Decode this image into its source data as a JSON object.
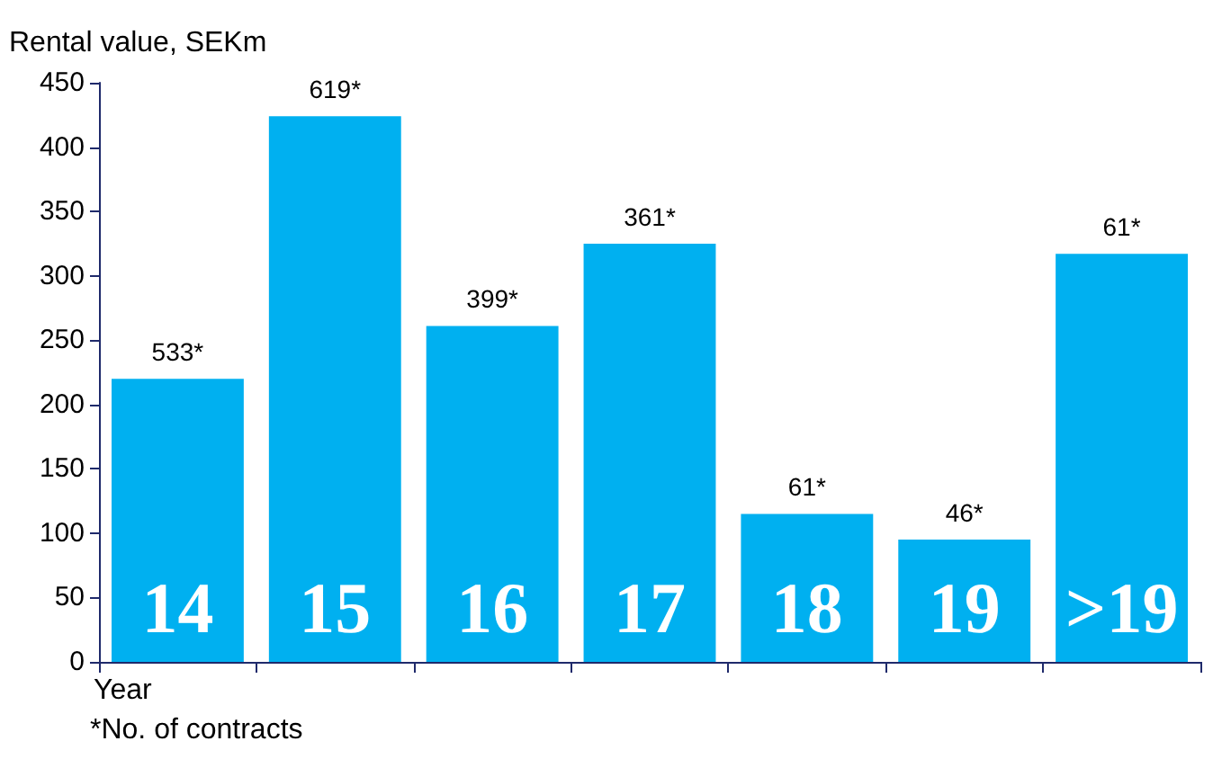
{
  "chart_data": {
    "type": "bar",
    "ylabel": "Rental value, SEKm",
    "xlabel": "Year",
    "categories": [
      "14",
      "15",
      "16",
      "17",
      "18",
      "19",
      ">19"
    ],
    "values": [
      220,
      424,
      261,
      325,
      115,
      95,
      317
    ],
    "color": "#00b0f0",
    "ylim": [
      0,
      450
    ],
    "yticks": [
      0,
      50,
      100,
      150,
      200,
      250,
      300,
      350,
      400,
      450
    ],
    "grid": false,
    "annotations": [
      {
        "text": "533*",
        "x": "14",
        "y": 220
      },
      {
        "text": "619*",
        "x": "15",
        "y": 424
      },
      {
        "text": "399*",
        "x": "16",
        "y": 261
      },
      {
        "text": "361*",
        "x": "17",
        "y": 325
      },
      {
        "text": "61*",
        "x": "18",
        "y": 115
      },
      {
        "text": "46*",
        "x": "19",
        "y": 95
      },
      {
        "text": "61*",
        "x": ">19",
        "y": 317
      },
      "*No. of contracts"
    ]
  }
}
